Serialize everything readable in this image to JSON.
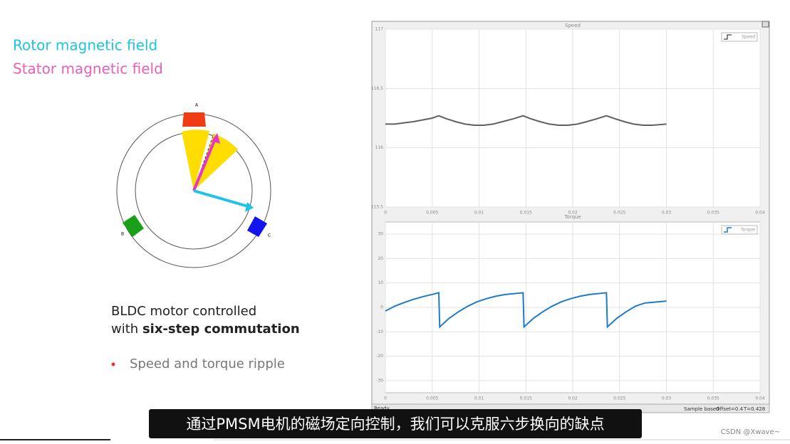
{
  "slide": {
    "legend_rotor": "Rotor magnetic field",
    "legend_stator": "Stator magnetic field",
    "motor_labels": [
      "A",
      "B",
      "C"
    ],
    "heading_line1": "BLDC motor controlled",
    "heading_line2_prefix": "with",
    "heading_line2_bold": "six-step commutation",
    "bullet": "Speed and torque ripple"
  },
  "scope": {
    "status_left": "Ready",
    "sample": "Sample based",
    "offset": "Offset=0.4",
    "time": "T=0.428"
  },
  "subtitle": "通过PMSM电机的磁场定向控制，我们可以克服六步换向的缺点",
  "watermark": "CSDN @Xwave~",
  "chart_data": [
    {
      "type": "line",
      "title": "Speed",
      "x": [
        0,
        0.001,
        0.002,
        0.003,
        0.004,
        0.005,
        0.0057,
        0.0065,
        0.0075,
        0.0085,
        0.0095,
        0.0105,
        0.0115,
        0.0125,
        0.0137,
        0.0147,
        0.0155,
        0.0165,
        0.0175,
        0.0185,
        0.0195,
        0.0205,
        0.0215,
        0.0226,
        0.0236,
        0.0245,
        0.0255,
        0.0265,
        0.0275,
        0.0285,
        0.03
      ],
      "series": [
        {
          "name": "Speed",
          "color": "#606060",
          "values": [
            116.2,
            116.2,
            116.21,
            116.22,
            116.235,
            116.25,
            116.27,
            116.245,
            116.22,
            116.2,
            116.19,
            116.19,
            116.2,
            116.22,
            116.245,
            116.27,
            116.245,
            116.22,
            116.2,
            116.19,
            116.19,
            116.2,
            116.22,
            116.245,
            116.27,
            116.245,
            116.22,
            116.2,
            116.19,
            116.19,
            116.2
          ]
        }
      ],
      "xlim": [
        0,
        0.04
      ],
      "ylim": [
        115.5,
        117
      ],
      "xticks": [
        0,
        0.005,
        0.01,
        0.015,
        0.02,
        0.025,
        0.03,
        0.035,
        0.04
      ],
      "yticks": [
        115.5,
        116,
        116.5,
        117
      ],
      "grid": true,
      "legend": "upper-right"
    },
    {
      "type": "line",
      "title": "Torque",
      "x": [
        0,
        0.001,
        0.002,
        0.003,
        0.004,
        0.005,
        0.0057,
        0.0058,
        0.0068,
        0.0078,
        0.0088,
        0.0098,
        0.0108,
        0.0118,
        0.0128,
        0.0147,
        0.0148,
        0.0158,
        0.0168,
        0.0178,
        0.0188,
        0.0198,
        0.0208,
        0.0218,
        0.0236,
        0.0237,
        0.0247,
        0.0257,
        0.0267,
        0.0277,
        0.03
      ],
      "series": [
        {
          "name": "Torque",
          "color": "#1f7ac8",
          "values": [
            -1.5,
            0.5,
            2,
            3.3,
            4.4,
            5.3,
            6,
            -8,
            -4.5,
            -1.8,
            0.5,
            2.3,
            3.6,
            4.6,
            5.3,
            6,
            -8,
            -4.5,
            -1.8,
            0.5,
            2.3,
            3.6,
            4.6,
            5.3,
            6,
            -8,
            -4.5,
            -1.8,
            0.5,
            1.8,
            2.6
          ]
        }
      ],
      "xlim": [
        0,
        0.04
      ],
      "ylim": [
        -35,
        35
      ],
      "xticks": [
        0,
        0.005,
        0.01,
        0.015,
        0.02,
        0.025,
        0.03,
        0.035,
        0.04
      ],
      "yticks": [
        -30,
        -20,
        -10,
        0,
        10,
        20,
        30
      ],
      "grid": true,
      "legend": "upper-right"
    }
  ]
}
